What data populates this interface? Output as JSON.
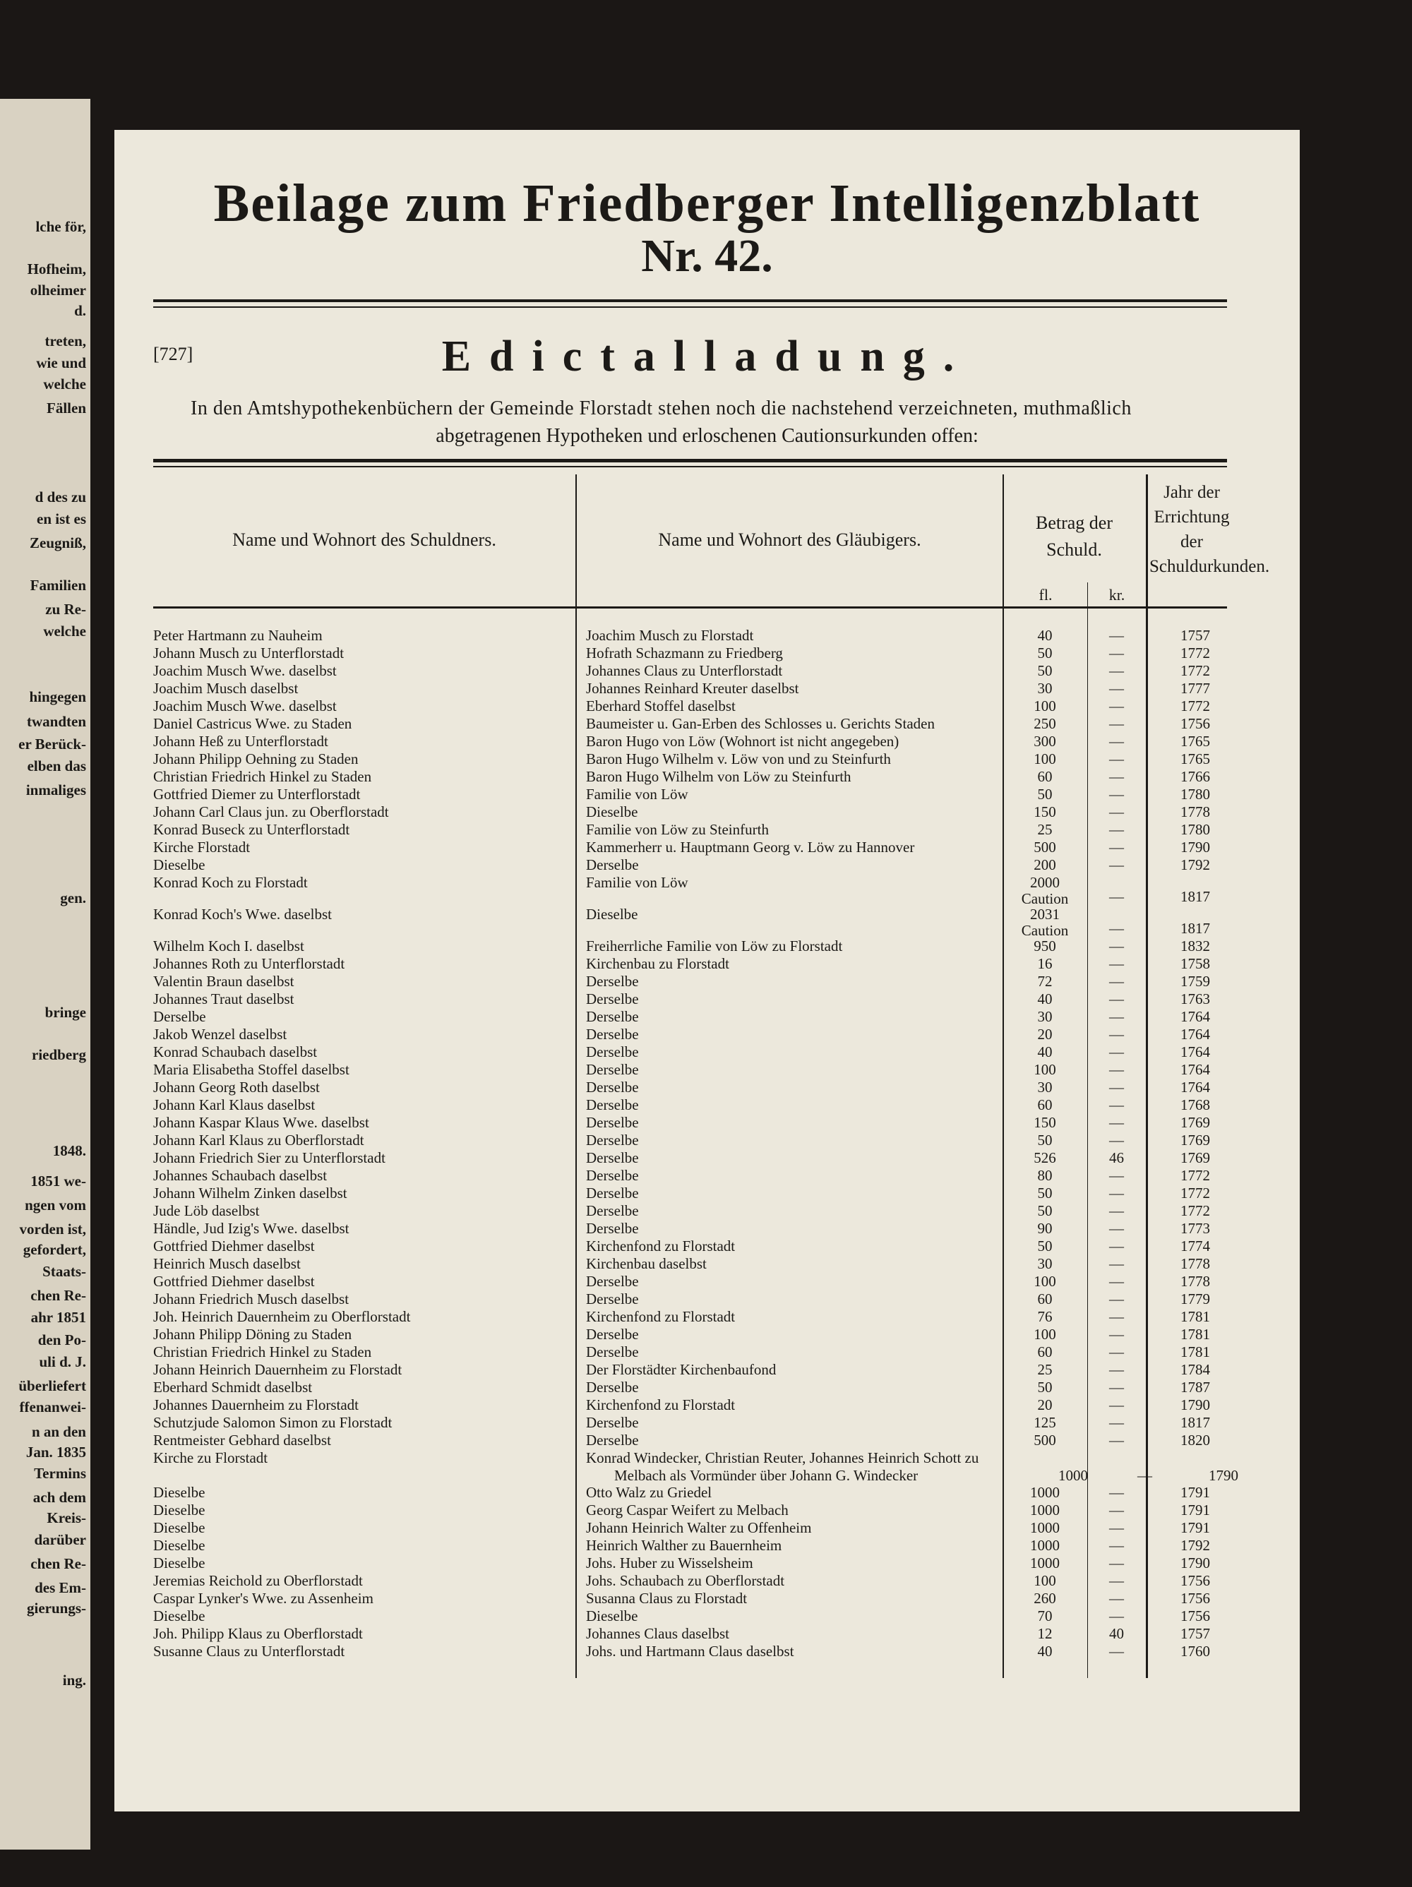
{
  "header": {
    "title": "Beilage zum Friedberger Intelligenzblatt",
    "number": "Nr. 42."
  },
  "notice": {
    "ref": "[727]",
    "title": "Edictalladung.",
    "intro": [
      "In den Amtshypothekenbüchern der Gemeinde Florstadt stehen noch die nachstehend verzeichneten, muthmaßlich",
      "abgetragenen Hypotheken und erloschenen Cautionsurkunden offen:"
    ]
  },
  "table": {
    "headers": {
      "debtor": "Name und Wohnort des Schuldners.",
      "creditor": "Name und Wohnort des Gläubigers.",
      "amount": "Betrag der Schuld.",
      "fl": "fl.",
      "kr": "kr.",
      "year": "Jahr der Errichtung der Schuldurkunden."
    },
    "rows": [
      [
        "Peter Hartmann zu Nauheim",
        "Joachim Musch zu Florstadt",
        "40",
        "—",
        "1757"
      ],
      [
        "Johann Musch zu Unterflorstadt",
        "Hofrath Schazmann zu Friedberg",
        "50",
        "—",
        "1772"
      ],
      [
        "Joachim Musch Wwe. daselbst",
        "Johannes Claus zu Unterflorstadt",
        "50",
        "—",
        "1772"
      ],
      [
        "Joachim Musch daselbst",
        "Johannes Reinhard Kreuter daselbst",
        "30",
        "—",
        "1777"
      ],
      [
        "Joachim Musch Wwe. daselbst",
        "Eberhard Stoffel daselbst",
        "100",
        "—",
        "1772"
      ],
      [
        "Daniel Castricus Wwe. zu Staden",
        "Baumeister u. Gan-Erben des Schlosses u. Gerichts Staden",
        "250",
        "—",
        "1756"
      ],
      [
        "Johann Heß zu Unterflorstadt",
        "Baron Hugo von Löw (Wohnort ist nicht angegeben)",
        "300",
        "—",
        "1765"
      ],
      [
        "Johann Philipp Oehning zu Staden",
        "Baron Hugo Wilhelm v. Löw von und zu Steinfurth",
        "100",
        "—",
        "1765"
      ],
      [
        "Christian Friedrich Hinkel zu Staden",
        "Baron Hugo Wilhelm von Löw zu Steinfurth",
        "60",
        "—",
        "1766"
      ],
      [
        "Gottfried Diemer zu Unterflorstadt",
        "Familie von Löw",
        "50",
        "—",
        "1780"
      ],
      [
        "Johann Carl Claus jun. zu Oberflorstadt",
        "Dieselbe",
        "150",
        "—",
        "1778"
      ],
      [
        "Konrad Buseck zu Unterflorstadt",
        "Familie von Löw zu Steinfurth",
        "25",
        "—",
        "1780"
      ],
      [
        "Kirche Florstadt",
        "Kammerherr u. Hauptmann Georg v. Löw zu Hannover",
        "500",
        "—",
        "1790"
      ],
      [
        "Dieselbe",
        "Derselbe",
        "200",
        "—",
        "1792"
      ],
      [
        "Konrad Koch zu Florstadt",
        "Familie von Löw",
        "2000",
        "—",
        "1817",
        "Caution"
      ],
      [
        "Konrad Koch's Wwe. daselbst",
        "Dieselbe",
        "2031",
        "—",
        "1817",
        "Caution"
      ],
      [
        "Wilhelm Koch I. daselbst",
        "Freiherrliche Familie von Löw zu Florstadt",
        "950",
        "—",
        "1832"
      ],
      [
        "Johannes Roth zu Unterflorstadt",
        "Kirchenbau zu Florstadt",
        "16",
        "—",
        "1758"
      ],
      [
        "Valentin Braun daselbst",
        "Derselbe",
        "72",
        "—",
        "1759"
      ],
      [
        "Johannes Traut daselbst",
        "Derselbe",
        "40",
        "—",
        "1763"
      ],
      [
        "Derselbe",
        "Derselbe",
        "30",
        "—",
        "1764"
      ],
      [
        "Jakob Wenzel daselbst",
        "Derselbe",
        "20",
        "—",
        "1764"
      ],
      [
        "Konrad Schaubach daselbst",
        "Derselbe",
        "40",
        "—",
        "1764"
      ],
      [
        "Maria Elisabetha Stoffel daselbst",
        "Derselbe",
        "100",
        "—",
        "1764"
      ],
      [
        "Johann Georg Roth daselbst",
        "Derselbe",
        "30",
        "—",
        "1764"
      ],
      [
        "Johann Karl Klaus daselbst",
        "Derselbe",
        "60",
        "—",
        "1768"
      ],
      [
        "Johann Kaspar Klaus Wwe. daselbst",
        "Derselbe",
        "150",
        "—",
        "1769"
      ],
      [
        "Johann Karl Klaus zu Oberflorstadt",
        "Derselbe",
        "50",
        "—",
        "1769"
      ],
      [
        "Johann Friedrich Sier zu Unterflorstadt",
        "Derselbe",
        "526",
        "46",
        "1769"
      ],
      [
        "Johannes Schaubach daselbst",
        "Derselbe",
        "80",
        "—",
        "1772"
      ],
      [
        "Johann Wilhelm Zinken daselbst",
        "Derselbe",
        "50",
        "—",
        "1772"
      ],
      [
        "Jude Löb daselbst",
        "Derselbe",
        "50",
        "—",
        "1772"
      ],
      [
        "Händle, Jud Izig's Wwe. daselbst",
        "Derselbe",
        "90",
        "—",
        "1773"
      ],
      [
        "Gottfried Diehmer daselbst",
        "Kirchenfond zu Florstadt",
        "50",
        "—",
        "1774"
      ],
      [
        "Heinrich Musch daselbst",
        "Kirchenbau daselbst",
        "30",
        "—",
        "1778"
      ],
      [
        "Gottfried Diehmer daselbst",
        "Derselbe",
        "100",
        "—",
        "1778"
      ],
      [
        "Johann Friedrich Musch daselbst",
        "Derselbe",
        "60",
        "—",
        "1779"
      ],
      [
        "Joh. Heinrich Dauernheim zu Oberflorstadt",
        "Kirchenfond zu Florstadt",
        "76",
        "—",
        "1781"
      ],
      [
        "Johann Philipp Döning zu Staden",
        "Derselbe",
        "100",
        "—",
        "1781"
      ],
      [
        "Christian Friedrich Hinkel zu Staden",
        "Derselbe",
        "60",
        "—",
        "1781"
      ],
      [
        "Johann Heinrich Dauernheim zu Florstadt",
        "Der Florstädter Kirchenbaufond",
        "25",
        "—",
        "1784"
      ],
      [
        "Eberhard Schmidt daselbst",
        "Derselbe",
        "50",
        "—",
        "1787"
      ],
      [
        "Johannes Dauernheim zu Florstadt",
        "Kirchenfond zu Florstadt",
        "20",
        "—",
        "1790"
      ],
      [
        "Schutzjude Salomon Simon zu Florstadt",
        "Derselbe",
        "125",
        "—",
        "1817"
      ],
      [
        "Rentmeister Gebhard daselbst",
        "Derselbe",
        "500",
        "—",
        "1820"
      ],
      [
        "Kirche zu Florstadt",
        "Konrad Windecker, Christian Reuter, Johannes Heinrich Schott zu Melbach als Vormünder über Johann G. Windecker",
        "1000",
        "—",
        "1790"
      ],
      [
        "Dieselbe",
        "Otto Walz zu Griedel",
        "1000",
        "—",
        "1791"
      ],
      [
        "Dieselbe",
        "Georg Caspar Weifert zu Melbach",
        "1000",
        "—",
        "1791"
      ],
      [
        "Dieselbe",
        "Johann Heinrich Walter zu Offenheim",
        "1000",
        "—",
        "1791"
      ],
      [
        "Dieselbe",
        "Heinrich Walther zu Bauernheim",
        "1000",
        "—",
        "1792"
      ],
      [
        "Dieselbe",
        "Johs. Huber zu Wisselsheim",
        "1000",
        "—",
        "1790"
      ],
      [
        "Jeremias Reichold zu Oberflorstadt",
        "Johs. Schaubach zu Oberflorstadt",
        "100",
        "—",
        "1756"
      ],
      [
        "Caspar Lynker's Wwe. zu Assenheim",
        "Susanna Claus zu Florstadt",
        "260",
        "—",
        "1756"
      ],
      [
        "Dieselbe",
        "Dieselbe",
        "70",
        "—",
        "1756"
      ],
      [
        "Joh. Philipp Klaus zu Oberflorstadt",
        "Johannes Claus daselbst",
        "12",
        "40",
        "1757"
      ],
      [
        "Susanne Claus zu Unterflorstadt",
        "Johs. und Hartmann Claus daselbst",
        "40",
        "—",
        "1760"
      ]
    ]
  },
  "left_page": {
    "lines": [
      "lche för,",
      "Hofheim,",
      "olheimer",
      "d.",
      "treten,",
      "wie und",
      "welche",
      "Fällen",
      "d des zu",
      "en ist es",
      "Zeugniß,",
      "Familien",
      "zu Re-",
      "welche",
      "hingegen",
      "twandten",
      "er Berück-",
      "elben das",
      "inmaliges",
      "gen.",
      "bringe",
      "riedberg",
      "1848.",
      "1851 we-",
      "ngen vom",
      "vorden ist,",
      "gefordert,",
      "Staats-",
      "chen Re-",
      "ahr 1851",
      "den Po-",
      "uli d. J.",
      "überliefert",
      "ffenanwei-",
      "n an den",
      "Jan. 1835",
      "Termins",
      "ach dem",
      "Kreis-",
      "darüber",
      "chen Re-",
      "des Em-",
      "gierungs-",
      "ing."
    ]
  }
}
